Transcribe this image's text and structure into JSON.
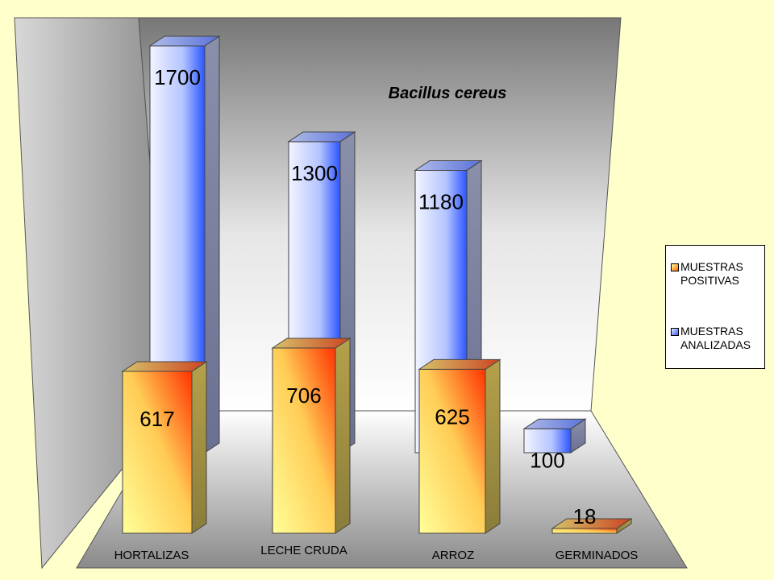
{
  "chart_data": {
    "type": "bar",
    "title": "Bacillus cereus",
    "categories": [
      "HORTALIZAS",
      "LECHE CRUDA",
      "ARROZ",
      "GERMINADOS"
    ],
    "series": [
      {
        "name": "MUESTRAS POSITIVAS",
        "values": [
          617,
          706,
          625,
          18
        ],
        "color": "#ff8a1e"
      },
      {
        "name": "MUESTRAS ANALIZADAS",
        "values": [
          1700,
          1300,
          1180,
          100
        ],
        "color": "#8aa8ff"
      }
    ],
    "data_labels": {
      "positivas": [
        "617",
        "706",
        "625",
        "18"
      ],
      "analizadas": [
        "1700",
        "1300",
        "1180",
        "100"
      ]
    },
    "legend": {
      "placement": "right",
      "entries": [
        "MUESTRAS\nPOSITIVAS",
        "MUESTRAS\nANALIZADAS"
      ]
    },
    "style": "3d-column",
    "colors": {
      "background": "#ffffcc",
      "wall_light": "#e8e8e8",
      "wall_dark": "#7a7a7a",
      "positivas_light": "#ffff99",
      "positivas_dark": "#ff3300",
      "analizadas_light": "#e8eeff",
      "analizadas_dark": "#2b55ff"
    }
  }
}
